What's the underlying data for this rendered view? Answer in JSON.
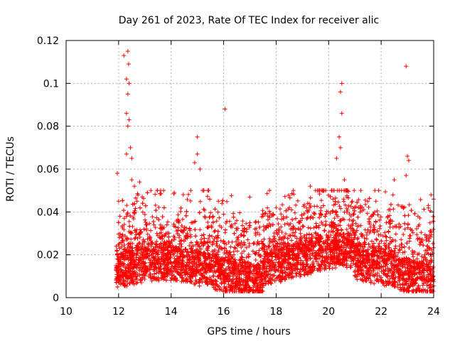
{
  "chart_data": {
    "type": "scatter",
    "title": "Day 261 of 2023, Rate Of TEC Index for receiver alic",
    "xlabel": "GPS time / hours",
    "ylabel": "ROTI / TECUs",
    "xlim": [
      10,
      24
    ],
    "ylim": [
      0,
      0.12
    ],
    "x_ticks": [
      10,
      12,
      14,
      16,
      18,
      20,
      22,
      24
    ],
    "y_ticks": [
      0,
      0.02,
      0.04,
      0.06,
      0.08,
      0.1,
      0.12
    ],
    "x_tick_labels": [
      "10",
      "12",
      "14",
      "16",
      "18",
      "20",
      "22",
      "24"
    ],
    "y_tick_labels": [
      "0",
      "0.02",
      "0.04",
      "0.06",
      "0.08",
      "0.1",
      "0.12"
    ],
    "grid": true,
    "marker": "+",
    "marker_color": "#ff0000",
    "data_range_hours": [
      11.9,
      24.0
    ],
    "series": [
      {
        "name": "ROTI",
        "points": [
          [
            11.95,
            0.058
          ],
          [
            12.0,
            0.045
          ],
          [
            12.05,
            0.038
          ],
          [
            12.2,
            0.113
          ],
          [
            12.3,
            0.102
          ],
          [
            12.35,
            0.115
          ],
          [
            12.38,
            0.109
          ],
          [
            12.4,
            0.1
          ],
          [
            12.3,
            0.086
          ],
          [
            12.35,
            0.08
          ],
          [
            12.4,
            0.083
          ],
          [
            12.35,
            0.095
          ],
          [
            12.45,
            0.07
          ],
          [
            12.5,
            0.065
          ],
          [
            12.3,
            0.067
          ],
          [
            12.5,
            0.055
          ],
          [
            12.6,
            0.052
          ],
          [
            12.8,
            0.054
          ],
          [
            12.9,
            0.047
          ],
          [
            12.7,
            0.045
          ],
          [
            15.0,
            0.075
          ],
          [
            14.9,
            0.063
          ],
          [
            15.0,
            0.067
          ],
          [
            15.1,
            0.06
          ],
          [
            15.2,
            0.05
          ],
          [
            16.05,
            0.088
          ],
          [
            20.5,
            0.1
          ],
          [
            20.45,
            0.096
          ],
          [
            20.5,
            0.086
          ],
          [
            20.4,
            0.075
          ],
          [
            20.45,
            0.07
          ],
          [
            20.6,
            0.055
          ],
          [
            20.7,
            0.05
          ],
          [
            20.3,
            0.065
          ],
          [
            22.95,
            0.108
          ],
          [
            23.0,
            0.066
          ],
          [
            23.05,
            0.064
          ],
          [
            22.95,
            0.057
          ],
          [
            22.5,
            0.055
          ],
          [
            22.45,
            0.048
          ],
          [
            21.8,
            0.045
          ],
          [
            21.75,
            0.04
          ],
          [
            23.9,
            0.048
          ],
          [
            23.8,
            0.043
          ],
          [
            24.0,
            0.046
          ],
          [
            19.3,
            0.052
          ],
          [
            19.5,
            0.05
          ],
          [
            19.2,
            0.044
          ],
          [
            18.0,
            0.042
          ],
          [
            17.5,
            0.038
          ],
          [
            16.5,
            0.036
          ],
          [
            15.8,
            0.045
          ],
          [
            15.6,
            0.038
          ],
          [
            14.7,
            0.032
          ],
          [
            14.3,
            0.035
          ],
          [
            13.6,
            0.025
          ],
          [
            13.2,
            0.028
          ],
          [
            17.0,
            0.035
          ],
          [
            16.8,
            0.032
          ],
          [
            21.2,
            0.04
          ],
          [
            20.9,
            0.045
          ],
          [
            22.2,
            0.035
          ],
          [
            23.4,
            0.038
          ]
        ]
      }
    ]
  }
}
